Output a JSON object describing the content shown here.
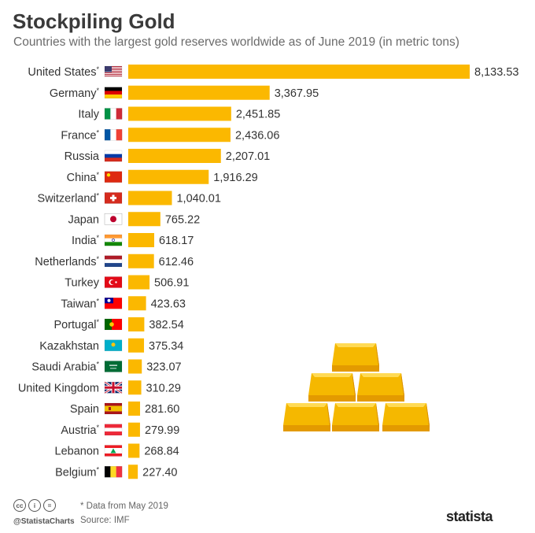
{
  "header": {
    "title": "Stockpiling Gold",
    "subtitle": "Countries with the largest gold reserves worldwide as of June 2019 (in metric tons)"
  },
  "footer": {
    "note": "* Data from May 2019",
    "source": "Source: IMF",
    "handle": "@StatistaCharts",
    "brand": "statista"
  },
  "colors": {
    "bar": "#FBB800",
    "text": "#333333",
    "subtle": "#666666"
  },
  "chart_data": {
    "type": "bar",
    "orientation": "horizontal",
    "title": "Stockpiling Gold",
    "subtitle": "Countries with the largest gold reserves worldwide as of June 2019 (in metric tons)",
    "categories": [
      "United States",
      "Germany",
      "Italy",
      "France",
      "Russia",
      "China",
      "Switzerland",
      "Japan",
      "India",
      "Netherlands",
      "Turkey",
      "Taiwan",
      "Portugal",
      "Kazakhstan",
      "Saudi Arabia",
      "United Kingdom",
      "Spain",
      "Austria",
      "Lebanon",
      "Belgium"
    ],
    "asterisk": [
      true,
      true,
      false,
      true,
      false,
      true,
      true,
      false,
      true,
      true,
      false,
      true,
      true,
      false,
      true,
      false,
      false,
      true,
      false,
      true
    ],
    "values": [
      8133.53,
      3367.95,
      2451.85,
      2436.06,
      2207.01,
      1916.29,
      1040.01,
      765.22,
      618.17,
      612.46,
      506.91,
      423.63,
      382.54,
      375.34,
      323.07,
      310.29,
      281.6,
      279.99,
      268.84,
      227.4
    ],
    "value_labels": [
      "8,133.53",
      "3,367.95",
      "2,451.85",
      "2,436.06",
      "2,207.01",
      "1,916.29",
      "1,040.01",
      "765.22",
      "618.17",
      "612.46",
      "506.91",
      "423.63",
      "382.54",
      "375.34",
      "323.07",
      "310.29",
      "281.60",
      "279.99",
      "268.84",
      "227.40"
    ],
    "flags": [
      "us",
      "de",
      "it",
      "fr",
      "ru",
      "cn",
      "ch",
      "jp",
      "in",
      "nl",
      "tr",
      "tw",
      "pt",
      "kz",
      "sa",
      "gb",
      "es",
      "at",
      "lb",
      "be"
    ],
    "xlim": [
      0,
      8133.53
    ],
    "grid": false,
    "legend": "none"
  }
}
